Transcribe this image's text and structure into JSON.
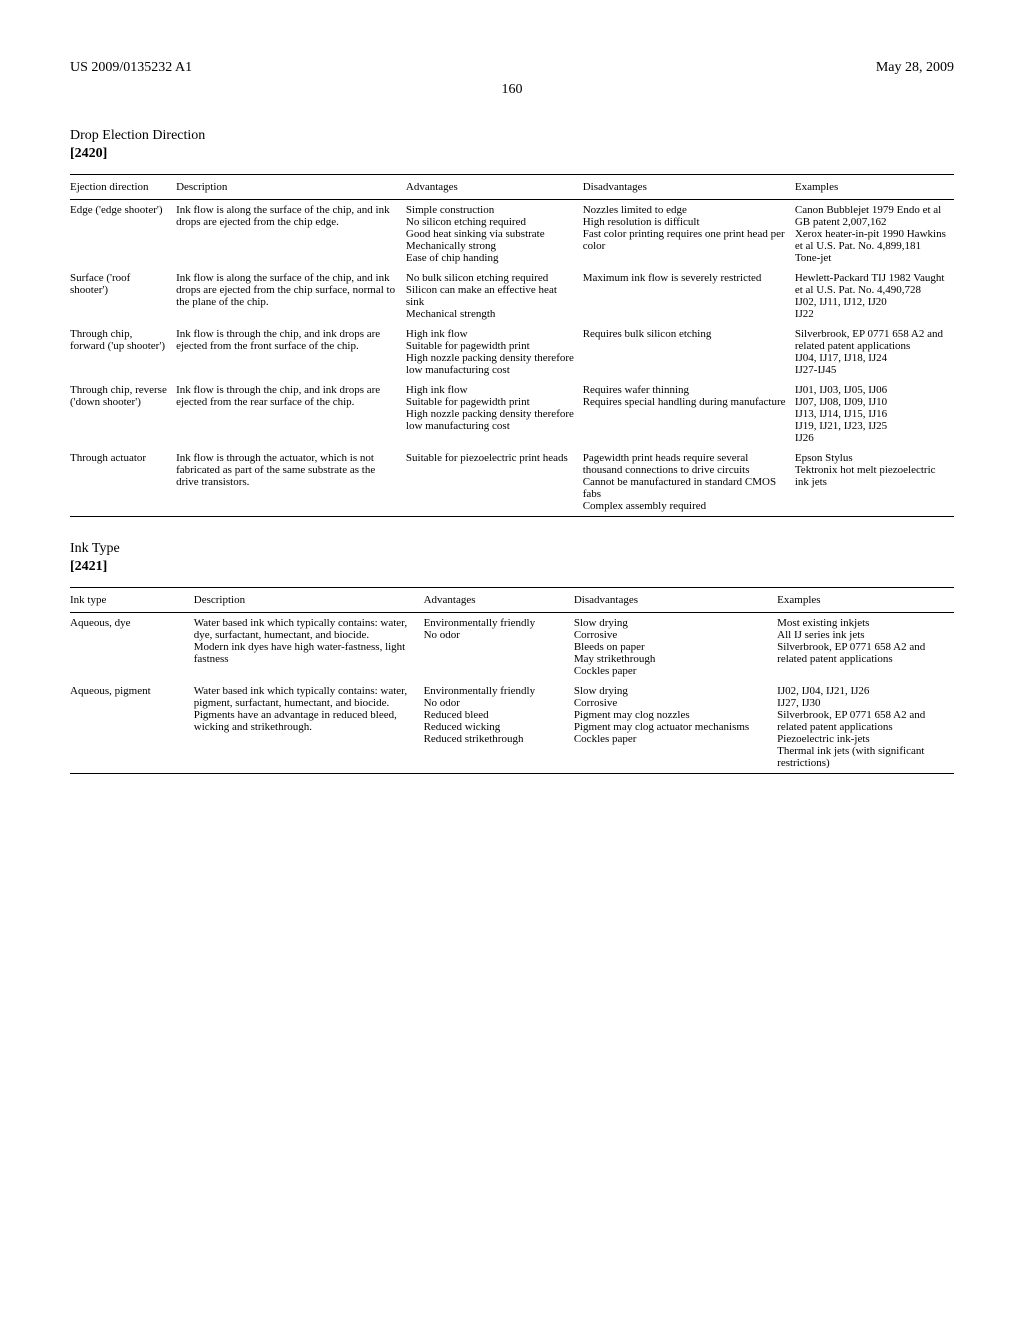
{
  "header": {
    "pub_number": "US 2009/0135232 A1",
    "pub_date": "May 28, 2009",
    "page_number": "160"
  },
  "section1": {
    "title": "Drop Election Direction",
    "number": "[2420]",
    "columns": [
      "Ejection direction",
      "Description",
      "Advantages",
      "Disadvantages",
      "Examples"
    ],
    "rows": [
      {
        "c0": "Edge ('edge shooter')",
        "c1": "Ink flow is along the surface of the chip, and ink drops are ejected from the chip edge.",
        "c2": "Simple construction\nNo silicon etching required\nGood heat sinking via substrate\nMechanically strong\nEase of chip handing",
        "c3": "Nozzles limited to edge\nHigh resolution is difficult\nFast color printing requires one print head per color",
        "c4": "Canon Bubblejet 1979 Endo et al GB patent 2,007,162\nXerox heater-in-pit 1990 Hawkins et al U.S. Pat. No. 4,899,181\nTone-jet"
      },
      {
        "c0": "Surface ('roof shooter')",
        "c1": "Ink flow is along the surface of the chip, and ink drops are ejected from the chip surface, normal to the plane of the chip.",
        "c2": "No bulk silicon etching required\nSilicon can make an effective heat sink\nMechanical strength",
        "c3": "Maximum ink flow is severely restricted",
        "c4": "Hewlett-Packard TIJ 1982 Vaught et al U.S. Pat. No. 4,490,728\nIJ02, IJ11, IJ12, IJ20\nIJ22"
      },
      {
        "c0": "Through chip, forward ('up shooter')",
        "c1": "Ink flow is through the chip, and ink drops are ejected from the front surface of the chip.",
        "c2": "High ink flow\nSuitable for pagewidth print\nHigh nozzle packing density therefore low manufacturing cost",
        "c3": "Requires bulk silicon etching",
        "c4": "Silverbrook, EP 0771 658 A2 and related patent applications\nIJ04, IJ17, IJ18, IJ24\nIJ27-IJ45"
      },
      {
        "c0": "Through chip, reverse ('down shooter')",
        "c1": "Ink flow is through the chip, and ink drops are ejected from the rear surface of the chip.",
        "c2": "High ink flow\nSuitable for pagewidth print\nHigh nozzle packing density therefore low manufacturing cost",
        "c3": "Requires wafer thinning\nRequires special handling during manufacture",
        "c4": "IJ01, IJ03, IJ05, IJ06\nIJ07, IJ08, IJ09, IJ10\nIJ13, IJ14, IJ15, IJ16\nIJ19, IJ21, IJ23, IJ25\nIJ26"
      },
      {
        "c0": "Through actuator",
        "c1": "Ink flow is through the actuator, which is not fabricated as part of the same substrate as the drive transistors.",
        "c2": "Suitable for piezoelectric print heads",
        "c3": "Pagewidth print heads require several thousand connections to drive circuits\nCannot be manufactured in standard CMOS fabs\nComplex assembly required",
        "c4": "Epson Stylus\nTektronix hot melt piezoelectric ink jets"
      }
    ]
  },
  "section2": {
    "title": "Ink Type",
    "number": "[2421]",
    "columns": [
      "Ink type",
      "Description",
      "Advantages",
      "Disadvantages",
      "Examples"
    ],
    "rows": [
      {
        "c0": "Aqueous, dye",
        "c1": "Water based ink which typically contains: water, dye, surfactant, humectant, and biocide.\nModern ink dyes have high water-fastness, light fastness",
        "c2": "Environmentally friendly\nNo odor",
        "c3": "Slow drying\nCorrosive\nBleeds on paper\nMay strikethrough\nCockles paper",
        "c4": "Most existing inkjets\nAll IJ series ink jets\nSilverbrook, EP 0771 658 A2 and related patent applications"
      },
      {
        "c0": "Aqueous, pigment",
        "c1": "Water based ink which typically contains: water, pigment, surfactant, humectant, and biocide.\nPigments have an advantage in reduced bleed, wicking and strikethrough.",
        "c2": "Environmentally friendly\nNo odor\nReduced bleed\nReduced wicking\nReduced strikethrough",
        "c3": "Slow drying\nCorrosive\nPigment may clog nozzles\nPigment may clog actuator mechanisms\nCockles paper",
        "c4": "IJ02, IJ04, IJ21, IJ26\nIJ27, IJ30\nSilverbrook, EP 0771 658 A2 and related patent applications\nPiezoelectric ink-jets\nThermal ink jets (with significant restrictions)"
      }
    ]
  }
}
